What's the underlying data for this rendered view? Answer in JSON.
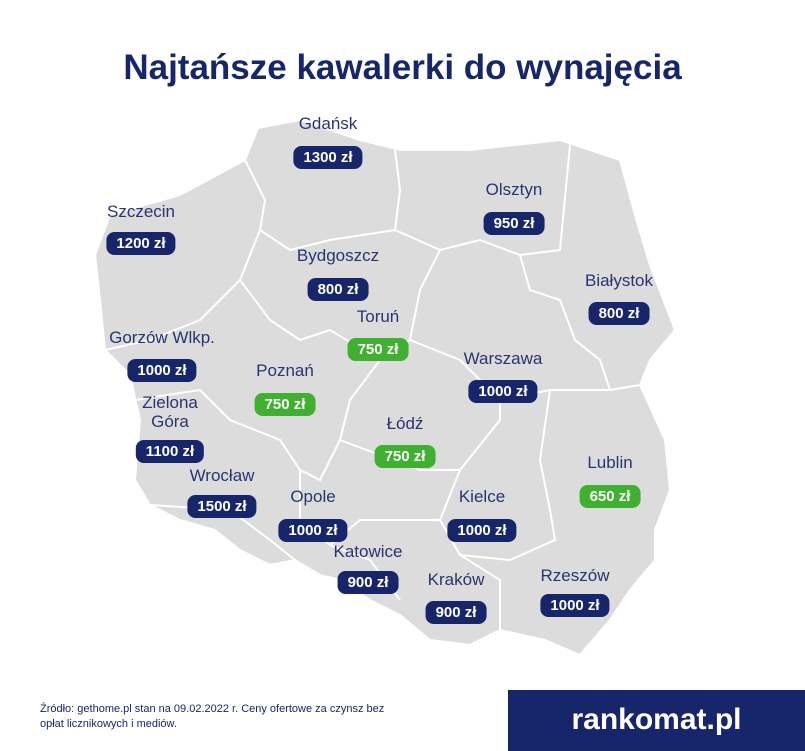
{
  "title": "Najtańsze kawalerki do wynajęcia",
  "cities": [
    {
      "name": "Gdańsk",
      "price": "1300 zł",
      "color": "#17266b"
    },
    {
      "name": "Szczecin",
      "price": "1200 zł",
      "color": "#17266b"
    },
    {
      "name": "Olsztyn",
      "price": "950 zł",
      "color": "#17266b"
    },
    {
      "name": "Bydgoszcz",
      "price": "800 zł",
      "color": "#17266b"
    },
    {
      "name": "Białystok",
      "price": "800 zł",
      "color": "#17266b"
    },
    {
      "name": "Toruń",
      "price": "750 zł",
      "color": "#3fb02f"
    },
    {
      "name": "Gorzów Wlkp.",
      "price": "1000 zł",
      "color": "#17266b"
    },
    {
      "name": "Poznań",
      "price": "750 zł",
      "color": "#3fb02f"
    },
    {
      "name": "Warszawa",
      "price": "1000 zł",
      "color": "#17266b"
    },
    {
      "name": "Zielona Góra",
      "price": "1100 zł",
      "color": "#17266b"
    },
    {
      "name": "Łódź",
      "price": "750 zł",
      "color": "#3fb02f"
    },
    {
      "name": "Lublin",
      "price": "650 zł",
      "color": "#3fb02f"
    },
    {
      "name": "Wrocław",
      "price": "1500 zł",
      "color": "#17266b"
    },
    {
      "name": "Opole",
      "price": "1000 zł",
      "color": "#17266b"
    },
    {
      "name": "Kielce",
      "price": "1000 zł",
      "color": "#17266b"
    },
    {
      "name": "Katowice",
      "price": "900 zł",
      "color": "#17266b"
    },
    {
      "name": "Rzeszów",
      "price": "1000 zł",
      "color": "#17266b"
    },
    {
      "name": "Kraków",
      "price": "900 zł",
      "color": "#17266b"
    }
  ],
  "source": "Źródło: gethome.pl stan na 09.02.2022 r. Ceny ofertowe za czynsz bez opłat licznikowych i mediów.",
  "logo": "rankomat.pl"
}
